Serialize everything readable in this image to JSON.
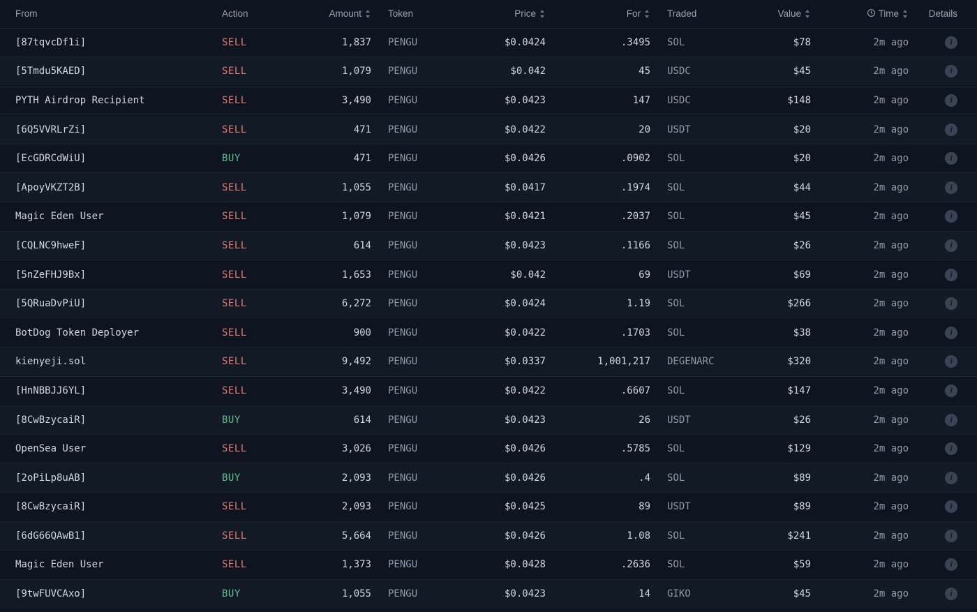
{
  "colors": {
    "bg": "#0e1520",
    "bg_alt": "#121a26",
    "row_border": "#1b2330",
    "text": "#c7d0dc",
    "text_dim": "#8e99aa",
    "header_text": "#9aa6b5",
    "sell": "#e27a72",
    "buy": "#5fbf8f",
    "info_bg": "#3a4454"
  },
  "headers": {
    "from": "From",
    "action": "Action",
    "amount": "Amount",
    "token": "Token",
    "price": "Price",
    "for": "For",
    "traded": "Traded",
    "value": "Value",
    "time": "Time",
    "details": "Details"
  },
  "rows": [
    {
      "from": "[87tqvcDf1i]",
      "action": "SELL",
      "amount": "1,837",
      "token": "PENGU",
      "price": "$0.0424",
      "for": ".3495",
      "traded": "SOL",
      "value": "$78",
      "time": "2m ago"
    },
    {
      "from": "[5Tmdu5KAED]",
      "action": "SELL",
      "amount": "1,079",
      "token": "PENGU",
      "price": "$0.042",
      "for": "45",
      "traded": "USDC",
      "value": "$45",
      "time": "2m ago"
    },
    {
      "from": "PYTH Airdrop Recipient",
      "action": "SELL",
      "amount": "3,490",
      "token": "PENGU",
      "price": "$0.0423",
      "for": "147",
      "traded": "USDC",
      "value": "$148",
      "time": "2m ago"
    },
    {
      "from": "[6Q5VVRLrZi]",
      "action": "SELL",
      "amount": "471",
      "token": "PENGU",
      "price": "$0.0422",
      "for": "20",
      "traded": "USDT",
      "value": "$20",
      "time": "2m ago"
    },
    {
      "from": "[EcGDRCdWiU]",
      "action": "BUY",
      "amount": "471",
      "token": "PENGU",
      "price": "$0.0426",
      "for": ".0902",
      "traded": "SOL",
      "value": "$20",
      "time": "2m ago"
    },
    {
      "from": "[ApoyVKZT2B]",
      "action": "SELL",
      "amount": "1,055",
      "token": "PENGU",
      "price": "$0.0417",
      "for": ".1974",
      "traded": "SOL",
      "value": "$44",
      "time": "2m ago"
    },
    {
      "from": "Magic Eden User",
      "action": "SELL",
      "amount": "1,079",
      "token": "PENGU",
      "price": "$0.0421",
      "for": ".2037",
      "traded": "SOL",
      "value": "$45",
      "time": "2m ago"
    },
    {
      "from": "[CQLNC9hweF]",
      "action": "SELL",
      "amount": "614",
      "token": "PENGU",
      "price": "$0.0423",
      "for": ".1166",
      "traded": "SOL",
      "value": "$26",
      "time": "2m ago"
    },
    {
      "from": "[5nZeFHJ9Bx]",
      "action": "SELL",
      "amount": "1,653",
      "token": "PENGU",
      "price": "$0.042",
      "for": "69",
      "traded": "USDT",
      "value": "$69",
      "time": "2m ago"
    },
    {
      "from": "[5QRuaDvPiU]",
      "action": "SELL",
      "amount": "6,272",
      "token": "PENGU",
      "price": "$0.0424",
      "for": "1.19",
      "traded": "SOL",
      "value": "$266",
      "time": "2m ago"
    },
    {
      "from": "BotDog Token Deployer",
      "action": "SELL",
      "amount": "900",
      "token": "PENGU",
      "price": "$0.0422",
      "for": ".1703",
      "traded": "SOL",
      "value": "$38",
      "time": "2m ago"
    },
    {
      "from": "kienyeji.sol",
      "action": "SELL",
      "amount": "9,492",
      "token": "PENGU",
      "price": "$0.0337",
      "for": "1,001,217",
      "traded": "DEGENARC",
      "value": "$320",
      "time": "2m ago"
    },
    {
      "from": "[HnNBBJJ6YL]",
      "action": "SELL",
      "amount": "3,490",
      "token": "PENGU",
      "price": "$0.0422",
      "for": ".6607",
      "traded": "SOL",
      "value": "$147",
      "time": "2m ago"
    },
    {
      "from": "[8CwBzycaiR]",
      "action": "BUY",
      "amount": "614",
      "token": "PENGU",
      "price": "$0.0423",
      "for": "26",
      "traded": "USDT",
      "value": "$26",
      "time": "2m ago"
    },
    {
      "from": "OpenSea User",
      "action": "SELL",
      "amount": "3,026",
      "token": "PENGU",
      "price": "$0.0426",
      "for": ".5785",
      "traded": "SOL",
      "value": "$129",
      "time": "2m ago"
    },
    {
      "from": "[2oPiLp8uAB]",
      "action": "BUY",
      "amount": "2,093",
      "token": "PENGU",
      "price": "$0.0426",
      "for": ".4",
      "traded": "SOL",
      "value": "$89",
      "time": "2m ago"
    },
    {
      "from": "[8CwBzycaiR]",
      "action": "SELL",
      "amount": "2,093",
      "token": "PENGU",
      "price": "$0.0425",
      "for": "89",
      "traded": "USDT",
      "value": "$89",
      "time": "2m ago"
    },
    {
      "from": "[6dG66QAwB1]",
      "action": "SELL",
      "amount": "5,664",
      "token": "PENGU",
      "price": "$0.0426",
      "for": "1.08",
      "traded": "SOL",
      "value": "$241",
      "time": "2m ago"
    },
    {
      "from": "Magic Eden User",
      "action": "SELL",
      "amount": "1,373",
      "token": "PENGU",
      "price": "$0.0428",
      "for": ".2636",
      "traded": "SOL",
      "value": "$59",
      "time": "2m ago"
    },
    {
      "from": "[9twFUVCAxo]",
      "action": "BUY",
      "amount": "1,055",
      "token": "PENGU",
      "price": "$0.0423",
      "for": "14",
      "traded": "GIKO",
      "value": "$45",
      "time": "2m ago"
    }
  ]
}
